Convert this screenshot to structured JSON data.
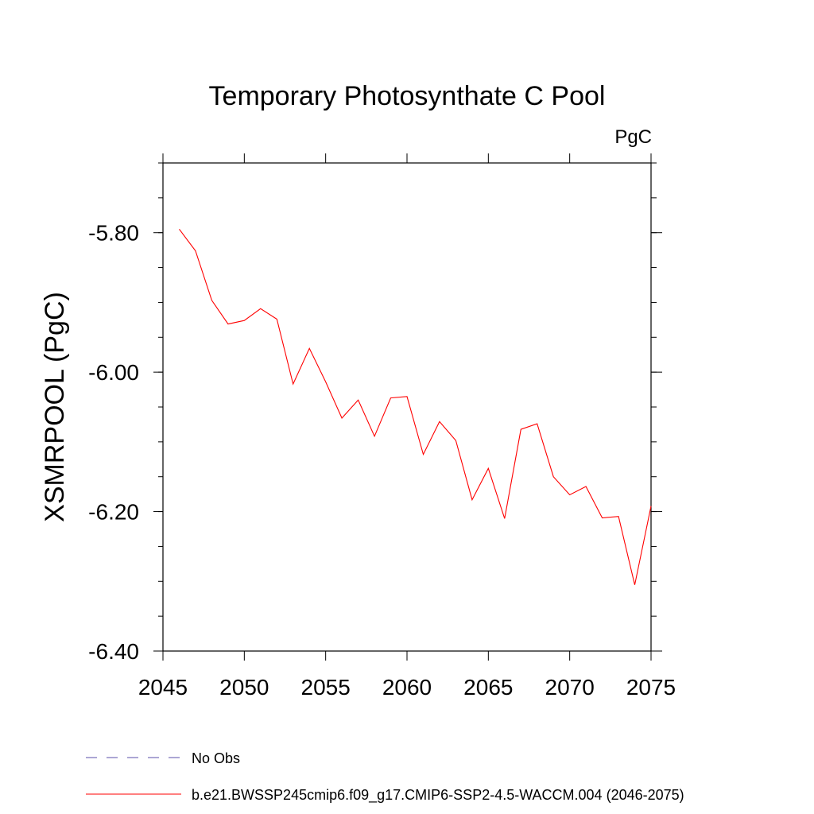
{
  "chart_data": {
    "type": "line",
    "title": "Temporary Photosynthate C Pool",
    "units": "PgC",
    "xlabel": "",
    "ylabel": "XSMRPOOL  (PgC)",
    "xlim": [
      2045,
      2075
    ],
    "ylim": [
      -6.4,
      -5.7
    ],
    "xticks": [
      "2045",
      "2050",
      "2055",
      "2060",
      "2065",
      "2070",
      "2075"
    ],
    "yticks": [
      "-5.80",
      "-6.00",
      "-6.20",
      "-6.40"
    ],
    "grid": false,
    "legend_position": "bottom-left",
    "series": [
      {
        "name": "No Obs",
        "color": "#5a4fa8",
        "dash": "dashed",
        "x": [],
        "y": []
      },
      {
        "name": "b.e21.BWSSP245cmip6.f09_g17.CMIP6-SSP2-4.5-WACCM.004 (2046-2075)",
        "color": "#ff0000",
        "dash": "solid",
        "x": [
          2046,
          2047,
          2048,
          2049,
          2050,
          2051,
          2052,
          2053,
          2054,
          2055,
          2056,
          2057,
          2058,
          2059,
          2060,
          2061,
          2062,
          2063,
          2064,
          2065,
          2066,
          2067,
          2068,
          2069,
          2070,
          2071,
          2072,
          2073,
          2074,
          2075
        ],
        "y": [
          -5.795,
          -5.826,
          -5.897,
          -5.931,
          -5.926,
          -5.909,
          -5.924,
          -6.017,
          -5.966,
          -6.014,
          -6.066,
          -6.04,
          -6.092,
          -6.037,
          -6.035,
          -6.118,
          -6.071,
          -6.098,
          -6.183,
          -6.138,
          -6.21,
          -6.082,
          -6.074,
          -6.15,
          -6.176,
          -6.164,
          -6.209,
          -6.207,
          -6.305,
          -6.192
        ]
      }
    ]
  }
}
